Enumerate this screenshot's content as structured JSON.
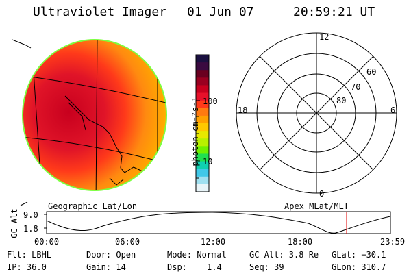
{
  "header": {
    "instrument": "Ultraviolet Imager",
    "date": "01 Jun 07",
    "time": "20:59:21 UT"
  },
  "image_panel": {
    "label": "Geographic Lat/Lon"
  },
  "colorbar": {
    "unit_label": "photon cm⁻²s⁻¹",
    "ticks": [
      "100",
      "10"
    ],
    "colors": [
      "#1a1040",
      "#3a0a40",
      "#6a0020",
      "#9a0020",
      "#c8001e",
      "#e8102a",
      "#ff3a1a",
      "#ff7a10",
      "#ffa000",
      "#ffc800",
      "#e8e800",
      "#b8f000",
      "#70f000",
      "#20e050",
      "#10d0b0",
      "#40c8e8",
      "#a0e0f0",
      "#e8f4f8"
    ]
  },
  "polar_plot": {
    "label": "Apex MLat/MLT",
    "mlt_labels": [
      "12",
      "18",
      "6",
      "0"
    ],
    "mlat_labels": [
      "60",
      "70",
      "80"
    ]
  },
  "altitude_plot": {
    "ylabel": "GC Alt",
    "yticks": [
      "9.0",
      "1.8"
    ],
    "xticks": [
      "00:00",
      "06:00",
      "12:00",
      "18:00",
      "23:59"
    ],
    "marker_color": "#e00000"
  },
  "status": {
    "filter": "Flt: LBHL",
    "ip": "IP: 36.0",
    "door": "Door: Open",
    "gain": "Gain: 14",
    "mode": "Mode: Normal",
    "dsp_label": "Dsp:",
    "dsp_value": "1.4",
    "gc_alt": "GC Alt: 3.8 Re",
    "seq": "Seq: 39",
    "glat": "GLat: −30.1",
    "glon": "GLon: 310.7"
  }
}
